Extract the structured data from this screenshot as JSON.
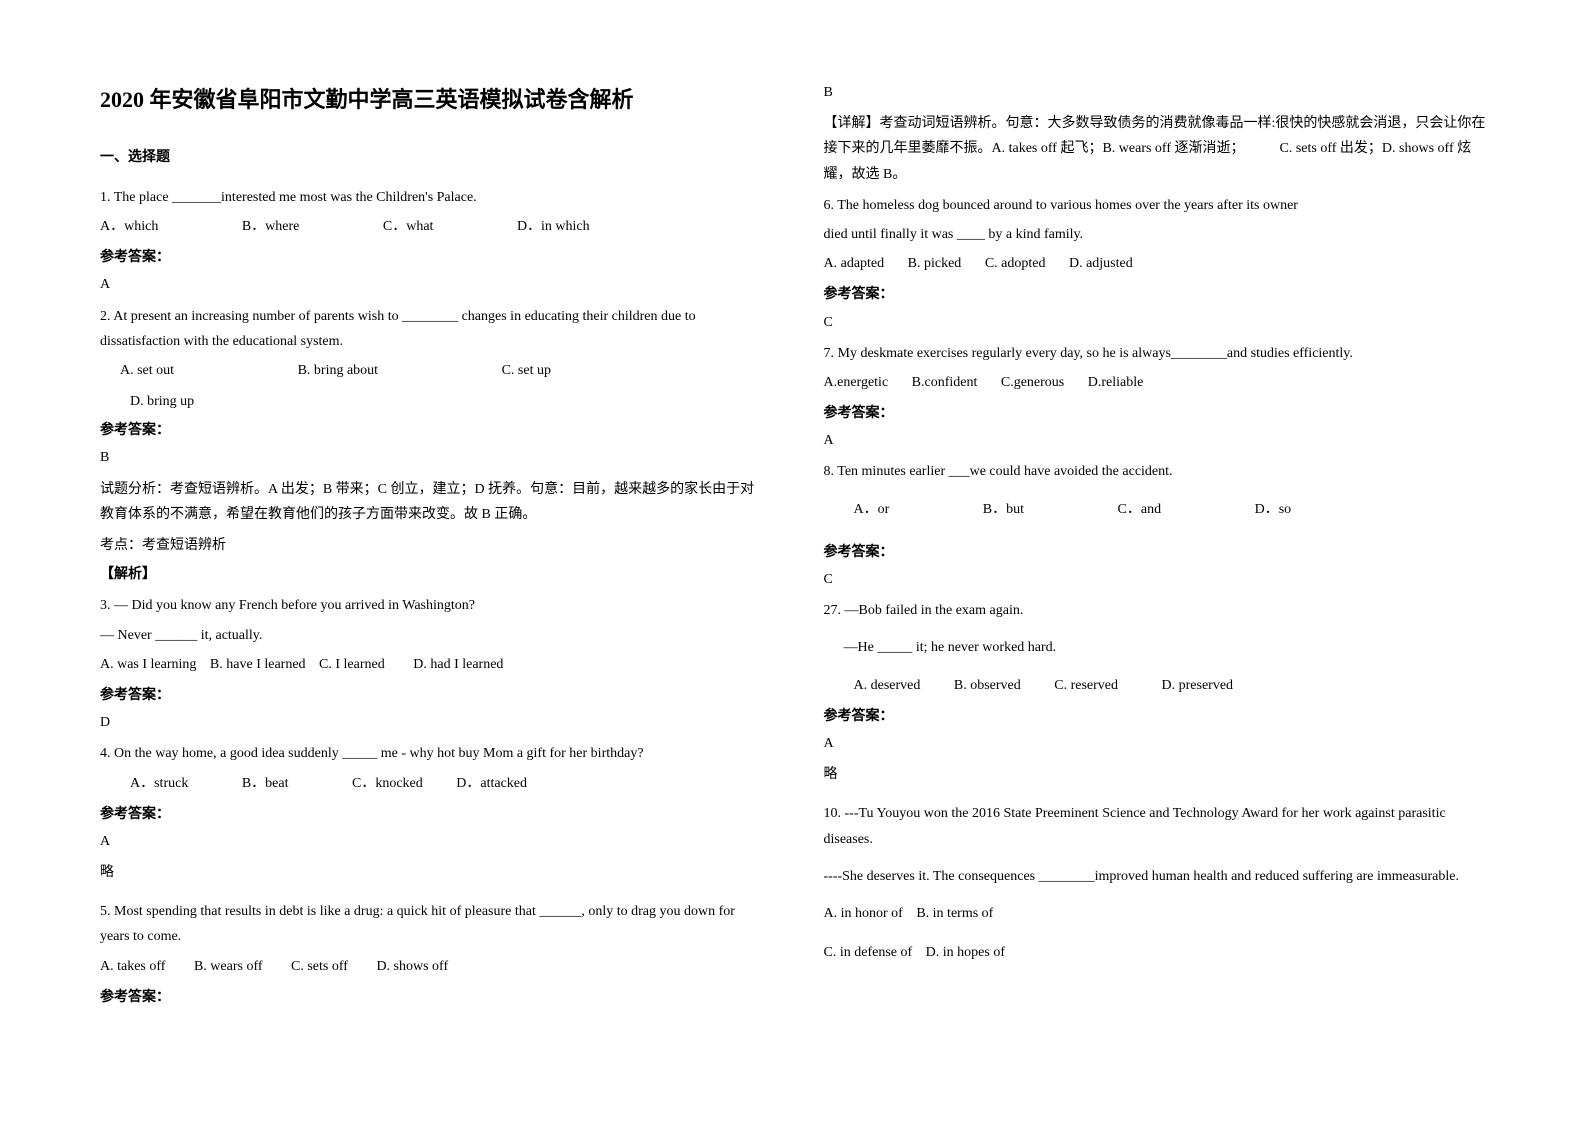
{
  "title": "2020 年安徽省阜阳市文勤中学高三英语模拟试卷含解析",
  "section_heading": "一、选择题",
  "left": {
    "q1": {
      "text": "1. The place _______interested me most was the Children's Palace.",
      "a": "A．which",
      "b": "B．where",
      "c": "C．what",
      "d": "D．in which",
      "answer_label": "参考答案：",
      "answer": "A"
    },
    "q2": {
      "text": "2. At present an increasing number of parents wish to ________ changes in educating their children due to dissatisfaction with the educational system.",
      "a": "A. set out",
      "b": "B. bring about",
      "c": "C. set up",
      "d": "D. bring up",
      "answer_label": "参考答案：",
      "answer": "B",
      "explanation": "试题分析：考查短语辨析。A 出发；B 带来；C 创立，建立；D 抚养。句意：目前，越来越多的家长由于对教育体系的不满意，希望在教育他们的孩子方面带来改变。故 B 正确。",
      "note": "考点：考查短语辨析",
      "explain_label": "【解析】"
    },
    "q3": {
      "text": "3. — Did you know any French before you arrived in Washington?",
      "text2": "— Never ______ it, actually.",
      "a": "A. was I learning",
      "b": "B. have I learned",
      "c": "C. I learned",
      "d": "D. had I learned",
      "answer_label": "参考答案：",
      "answer": "D"
    },
    "q4": {
      "text": "4. On the way home, a good idea suddenly _____ me - why hot buy Mom a gift for her birthday?",
      "a": "A．struck",
      "b": "B．beat",
      "c": "C．knocked",
      "d": "D．attacked",
      "answer_label": "参考答案：",
      "answer": "A",
      "omit": "略"
    },
    "q5": {
      "text": "5. Most spending that results in debt is like a drug: a quick hit of pleasure that ______, only to drag you down for years to come.",
      "a": "A. takes off",
      "b": "B. wears off",
      "c": "C. sets off",
      "d": "D. shows off",
      "answer_label": "参考答案："
    }
  },
  "right": {
    "q5cont": {
      "answer": "B",
      "explanation": "【详解】考查动词短语辨析。句意：大多数导致债务的消费就像毒品一样:很快的快感就会消退，只会让你在接下来的几年里萎靡不振。A. takes off 起飞；B. wears off 逐渐消逝；　　　C. sets off 出发；D. shows off 炫耀，故选 B。"
    },
    "q6": {
      "text": "6. The homeless dog bounced around to various homes over the years after its owner",
      "text2": "died until finally it was ____ by a kind family.",
      "a": "A. adapted",
      "b": "B. picked",
      "c": "C. adopted",
      "d": "D. adjusted",
      "answer_label": "参考答案：",
      "answer": "C"
    },
    "q7": {
      "text": "7. My deskmate exercises regularly every day, so he is always________and studies efficiently.",
      "a": "A.energetic",
      "b": "B.confident",
      "c": "C.generous",
      "d": "D.reliable",
      "answer_label": "参考答案：",
      "answer": "A"
    },
    "q8": {
      "text": "8. Ten minutes earlier ___we could have avoided the accident.",
      "a": "A．or",
      "b": "B．but",
      "c": "C．and",
      "d": "D．so",
      "answer_label": "参考答案：",
      "answer": "C"
    },
    "q9": {
      "text": "27. —Bob failed in the exam again.",
      "text2": "—He _____ it; he never worked hard.",
      "a": "A. deserved",
      "b": "B. observed",
      "c": "C. reserved",
      "d": "D. preserved",
      "answer_label": "参考答案：",
      "answer": "A",
      "omit": "略"
    },
    "q10": {
      "text": "10. ---Tu Youyou won the 2016 State Preeminent Science and Technology Award for her work against parasitic diseases.",
      "text2": "----She deserves it. The consequences ________improved human health and reduced suffering are immeasurable.",
      "a": "A. in honor of",
      "b": "B. in terms of",
      "c": "C. in defense of",
      "d": "D. in hopes of"
    }
  }
}
